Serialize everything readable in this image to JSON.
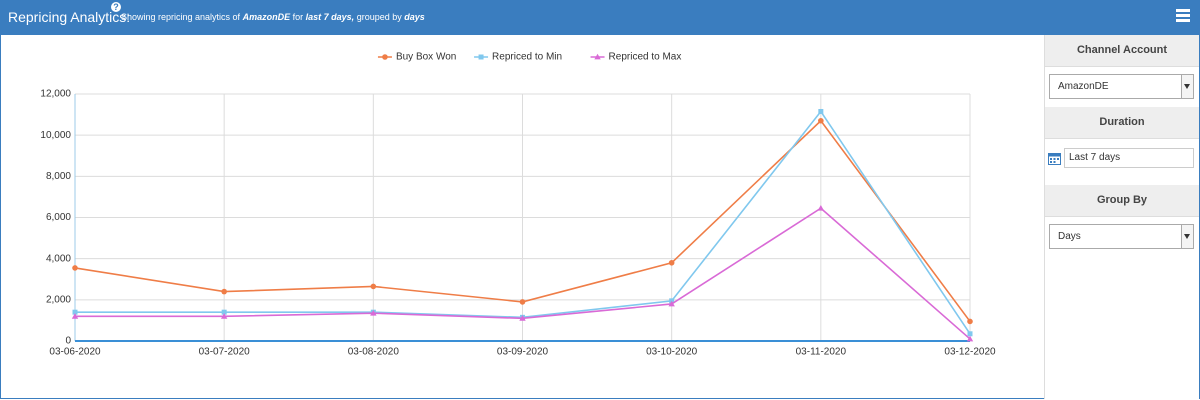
{
  "header": {
    "title": "Repricing Analytics:",
    "help": "?",
    "text_1": "Showing repricing analytics of",
    "account": "AmazonDE",
    "text_2": "for",
    "duration": "last 7 days,",
    "text_3": "grouped by",
    "group": "days"
  },
  "sidebar": {
    "channel_label": "Channel Account",
    "channel_value": "AmazonDE",
    "duration_label": "Duration",
    "duration_value": "Last 7 days",
    "group_label": "Group By",
    "group_value": "Days"
  },
  "chart_data": {
    "type": "line",
    "categories": [
      "03-06-2020",
      "03-07-2020",
      "03-08-2020",
      "03-09-2020",
      "03-10-2020",
      "03-11-2020",
      "03-12-2020"
    ],
    "series": [
      {
        "name": "Buy Box Won",
        "color": "#ef7d47",
        "marker": "circle",
        "values": [
          3550,
          2400,
          2650,
          1900,
          3800,
          10700,
          950
        ]
      },
      {
        "name": "Repriced to Min",
        "color": "#80c8ee",
        "marker": "square",
        "values": [
          1400,
          1400,
          1400,
          1150,
          1950,
          11150,
          350
        ]
      },
      {
        "name": "Repriced to Max",
        "color": "#d96ad6",
        "marker": "triangle",
        "values": [
          1200,
          1200,
          1350,
          1100,
          1800,
          6450,
          100
        ]
      }
    ],
    "ylim": [
      0,
      12000
    ],
    "yticks": [
      0,
      {
        "value": 2000,
        "label": "2,000"
      },
      {
        "value": 4000,
        "label": "4,000"
      },
      {
        "value": 6000,
        "label": "6,000"
      },
      {
        "value": 8000,
        "label": "8,000"
      },
      {
        "value": 10000,
        "label": "10,000"
      },
      {
        "value": 12000,
        "label": "12,000"
      }
    ],
    "grid": true,
    "legend": "top"
  }
}
